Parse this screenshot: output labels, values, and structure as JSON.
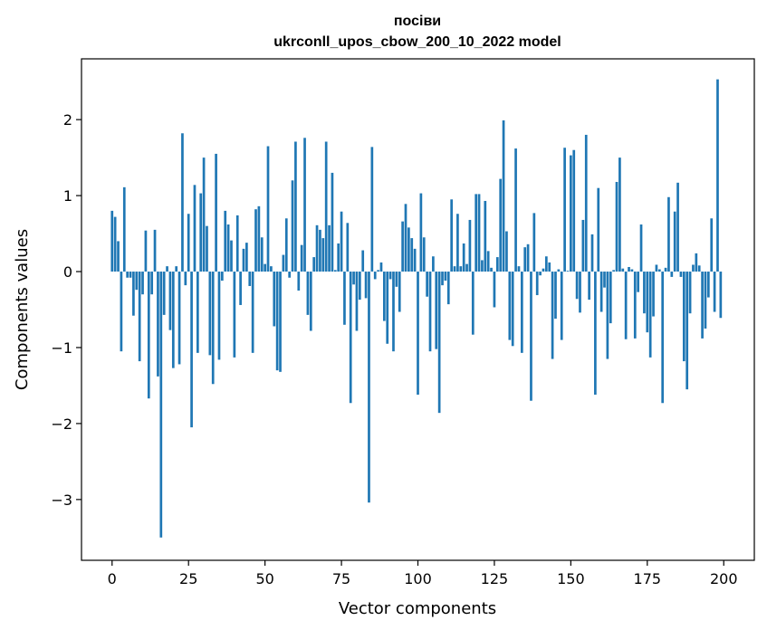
{
  "chart_data": {
    "type": "bar",
    "title_line1": "посіви",
    "title_line2": "ukrconll_upos_cbow_200_10_2022 model",
    "xlabel": "Vector components",
    "ylabel": "Components values",
    "xlim": [
      -10,
      210
    ],
    "ylim": [
      -3.8,
      2.8
    ],
    "xticks": [
      0,
      25,
      50,
      75,
      100,
      125,
      150,
      175,
      200
    ],
    "yticks": [
      -3,
      -2,
      -1,
      0,
      1,
      2
    ],
    "bar_color": "#1f77b4",
    "grid": false,
    "x": [
      0,
      1,
      2,
      3,
      4,
      5,
      6,
      7,
      8,
      9,
      10,
      11,
      12,
      13,
      14,
      15,
      16,
      17,
      18,
      19,
      20,
      21,
      22,
      23,
      24,
      25,
      26,
      27,
      28,
      29,
      30,
      31,
      32,
      33,
      34,
      35,
      36,
      37,
      38,
      39,
      40,
      41,
      42,
      43,
      44,
      45,
      46,
      47,
      48,
      49,
      50,
      51,
      52,
      53,
      54,
      55,
      56,
      57,
      58,
      59,
      60,
      61,
      62,
      63,
      64,
      65,
      66,
      67,
      68,
      69,
      70,
      71,
      72,
      73,
      74,
      75,
      76,
      77,
      78,
      79,
      80,
      81,
      82,
      83,
      84,
      85,
      86,
      87,
      88,
      89,
      90,
      91,
      92,
      93,
      94,
      95,
      96,
      97,
      98,
      99,
      100,
      101,
      102,
      103,
      104,
      105,
      106,
      107,
      108,
      109,
      110,
      111,
      112,
      113,
      114,
      115,
      116,
      117,
      118,
      119,
      120,
      121,
      122,
      123,
      124,
      125,
      126,
      127,
      128,
      129,
      130,
      131,
      132,
      133,
      134,
      135,
      136,
      137,
      138,
      139,
      140,
      141,
      142,
      143,
      144,
      145,
      146,
      147,
      148,
      149,
      150,
      151,
      152,
      153,
      154,
      155,
      156,
      157,
      158,
      159,
      160,
      161,
      162,
      163,
      164,
      165,
      166,
      167,
      168,
      169,
      170,
      171,
      172,
      173,
      174,
      175,
      176,
      177,
      178,
      179,
      180,
      181,
      182,
      183,
      184,
      185,
      186,
      187,
      188,
      189,
      190,
      191,
      192,
      193,
      194,
      195,
      196,
      197,
      198,
      199
    ],
    "values": [
      0.8,
      0.72,
      0.4,
      -1.05,
      1.11,
      -0.08,
      -0.08,
      -0.58,
      -0.24,
      -1.18,
      -0.3,
      0.54,
      -1.67,
      -0.3,
      0.55,
      -1.38,
      -3.5,
      -0.57,
      0.07,
      -0.77,
      -1.27,
      0.07,
      -1.22,
      1.82,
      -0.18,
      0.76,
      -2.05,
      1.14,
      -1.07,
      1.03,
      1.5,
      0.6,
      -1.1,
      -1.48,
      1.55,
      -1.16,
      -0.12,
      0.8,
      0.62,
      0.41,
      -1.13,
      0.74,
      -0.44,
      0.3,
      0.38,
      -0.19,
      -1.07,
      0.82,
      0.86,
      0.45,
      0.1,
      1.65,
      0.07,
      -0.72,
      -1.3,
      -1.32,
      0.22,
      0.7,
      -0.08,
      1.2,
      1.71,
      -0.25,
      0.35,
      1.76,
      -0.57,
      -0.78,
      0.19,
      0.61,
      0.55,
      0.44,
      1.71,
      0.61,
      1.3,
      0.02,
      0.37,
      0.79,
      -0.7,
      0.64,
      -1.73,
      -0.17,
      -0.78,
      -0.37,
      0.28,
      -0.35,
      -3.04,
      1.64,
      -0.1,
      0.02,
      0.12,
      -0.65,
      -0.95,
      -0.1,
      -1.05,
      -0.2,
      -0.53,
      0.66,
      0.89,
      0.58,
      0.44,
      0.3,
      -1.62,
      1.03,
      0.45,
      -0.33,
      -1.05,
      0.2,
      -1.02,
      -1.86,
      -0.18,
      -0.12,
      -0.43,
      0.95,
      0.07,
      0.76,
      0.07,
      0.37,
      0.1,
      0.68,
      -0.83,
      1.02,
      1.02,
      0.15,
      0.93,
      0.27,
      0.05,
      -0.47,
      0.19,
      1.22,
      1.99,
      0.53,
      -0.9,
      -0.98,
      1.62,
      0.07,
      -1.07,
      0.32,
      0.36,
      -1.7,
      0.77,
      -0.31,
      -0.05,
      0.04,
      0.2,
      0.12,
      -1.15,
      -0.62,
      0.03,
      -0.9,
      1.63,
      0.01,
      1.53,
      1.6,
      -0.36,
      -0.54,
      0.68,
      1.8,
      -0.37,
      0.49,
      -1.62,
      1.1,
      -0.53,
      -0.21,
      -1.15,
      -0.68,
      0.02,
      1.18,
      1.5,
      0.04,
      -0.89,
      0.06,
      0.03,
      -0.88,
      -0.27,
      0.62,
      -0.55,
      -0.8,
      -1.13,
      -0.59,
      0.09,
      0.03,
      -1.73,
      0.05,
      0.98,
      -0.07,
      0.79,
      1.17,
      -0.07,
      -1.18,
      -1.55,
      -0.55,
      0.09,
      0.24,
      0.08,
      -0.88,
      -0.75,
      -0.34,
      0.7,
      -0.53,
      2.53,
      -0.61
    ]
  }
}
